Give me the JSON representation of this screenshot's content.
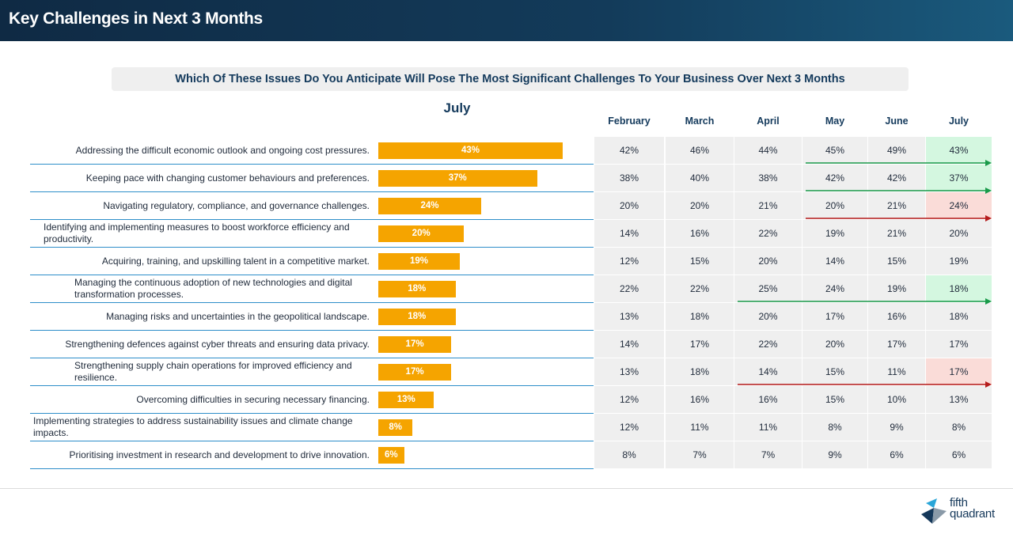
{
  "header": {
    "title": "Key Challenges in Next 3 Months"
  },
  "question": "Which Of These Issues Do You Anticipate Will Pose The Most Significant Challenges To Your Business Over Next 3 Months",
  "logo": {
    "line1": "fifth",
    "line2": "quadrant"
  },
  "colors": {
    "bar": "#f5a400",
    "rule": "#2d8ec9",
    "up": "#1a9a4a",
    "down": "#b51c1c",
    "upBg": "#d4f7e0",
    "downBg": "#fadcd8",
    "header": "#0f2a44"
  },
  "chart_data": {
    "type": "bar",
    "title": "July",
    "months": [
      "February",
      "March",
      "April",
      "May",
      "June",
      "July"
    ],
    "categories": [
      "Addressing the difficult economic outlook and ongoing cost pressures.",
      "Keeping pace with changing customer behaviours and preferences.",
      "Navigating regulatory, compliance, and governance challenges.",
      "Identifying and implementing measures to boost workforce efficiency and productivity.",
      "Acquiring, training, and upskilling talent in a competitive market.",
      "Managing the continuous adoption of new technologies and digital transformation processes.",
      "Managing risks and uncertainties in the geopolitical landscape.",
      "Strengthening defences against cyber threats and ensuring data privacy.",
      "Strengthening supply chain operations for improved efficiency and resilience.",
      "Overcoming difficulties in securing necessary financing.",
      "Implementing strategies to address sustainability issues and climate change impacts.",
      "Prioritising investment in research and development to drive innovation."
    ],
    "values": [
      43,
      37,
      24,
      20,
      19,
      18,
      18,
      17,
      17,
      13,
      8,
      6
    ],
    "labels": [
      "43%",
      "37%",
      "24%",
      "20%",
      "19%",
      "18%",
      "18%",
      "17%",
      "17%",
      "13%",
      "8%",
      "6%"
    ],
    "table": [
      [
        "42%",
        "46%",
        "44%",
        "45%",
        "49%",
        "43%"
      ],
      [
        "38%",
        "40%",
        "38%",
        "42%",
        "42%",
        "37%"
      ],
      [
        "20%",
        "20%",
        "21%",
        "20%",
        "21%",
        "24%"
      ],
      [
        "14%",
        "16%",
        "22%",
        "19%",
        "21%",
        "20%"
      ],
      [
        "12%",
        "15%",
        "20%",
        "14%",
        "15%",
        "19%"
      ],
      [
        "22%",
        "22%",
        "25%",
        "24%",
        "19%",
        "18%"
      ],
      [
        "13%",
        "18%",
        "20%",
        "17%",
        "16%",
        "18%"
      ],
      [
        "14%",
        "17%",
        "22%",
        "20%",
        "17%",
        "17%"
      ],
      [
        "13%",
        "18%",
        "14%",
        "15%",
        "11%",
        "17%"
      ],
      [
        "12%",
        "16%",
        "16%",
        "15%",
        "10%",
        "13%"
      ],
      [
        "12%",
        "11%",
        "11%",
        "8%",
        "9%",
        "8%"
      ],
      [
        "8%",
        "7%",
        "7%",
        "9%",
        "6%",
        "6%"
      ]
    ],
    "trends": [
      {
        "row": 0,
        "type": "up",
        "from_month": 3
      },
      {
        "row": 1,
        "type": "up",
        "from_month": 3
      },
      {
        "row": 2,
        "type": "down",
        "from_month": 3
      },
      {
        "row": 5,
        "type": "up",
        "from_month": 2
      },
      {
        "row": 8,
        "type": "down",
        "from_month": 2
      }
    ],
    "xlim": [
      0,
      100
    ]
  }
}
